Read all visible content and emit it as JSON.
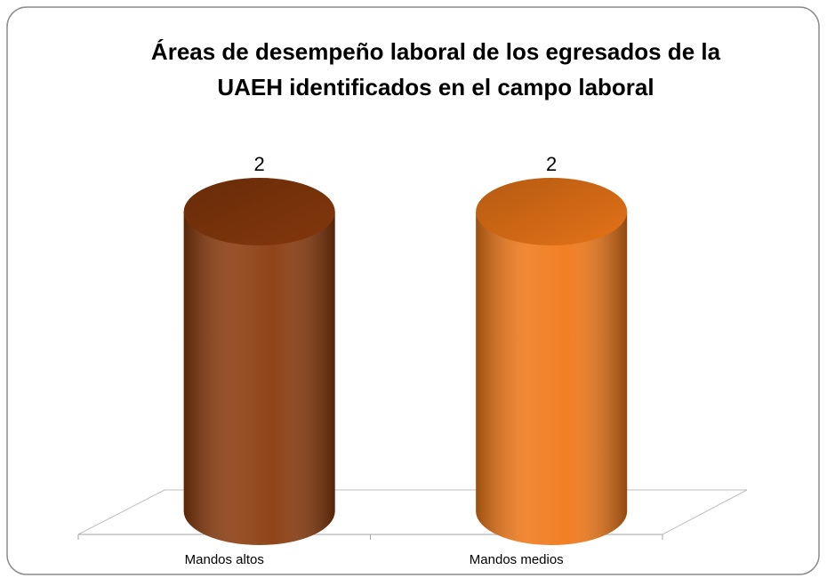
{
  "chart_data": {
    "type": "bar",
    "title": "Áreas de desempeño laboral de los egresados de la UAEH identificados en el campo laboral",
    "categories": [
      "Mandos altos",
      "Mandos medios"
    ],
    "values": [
      2,
      2
    ],
    "colors": [
      "#8a3a0c",
      "#f07818"
    ]
  }
}
